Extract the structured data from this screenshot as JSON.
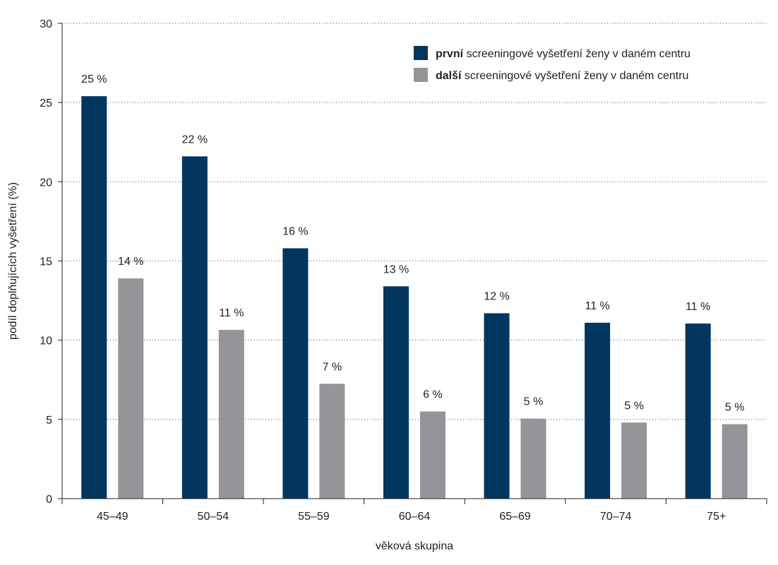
{
  "chart_data": {
    "type": "bar",
    "categories": [
      "45–49",
      "50–54",
      "55–59",
      "60–64",
      "65–69",
      "70–74",
      "75+"
    ],
    "series": [
      {
        "name": "první screeningové vyšetření ženy v daném centru",
        "legend_bold": "první",
        "legend_rest": " screeningové vyšetření ženy v daném centru",
        "color": "#003660",
        "values": [
          25.4,
          21.6,
          15.8,
          13.4,
          11.7,
          11.1,
          11.05
        ],
        "labels": [
          "25 %",
          "22 %",
          "16 %",
          "13 %",
          "12 %",
          "11 %",
          "11 %"
        ]
      },
      {
        "name": "další screeningové vyšetření ženy v daném centru",
        "legend_bold": "další",
        "legend_rest": " screeningové vyšetření ženy v daném centru",
        "color": "#939598",
        "values": [
          13.9,
          10.65,
          7.25,
          5.5,
          5.05,
          4.8,
          4.7
        ],
        "labels": [
          "14 %",
          "11 %",
          "7 %",
          "6 %",
          "5 %",
          "5 %",
          "5 %"
        ]
      }
    ],
    "yticks": [
      0,
      5,
      10,
      15,
      20,
      25,
      30
    ],
    "ylim": [
      0,
      30
    ],
    "xlabel": "věková skupina",
    "ylabel": "podíl doplňujících vyšetření (%)",
    "grid": "horizontal dotted",
    "legend_position": "top-right"
  }
}
